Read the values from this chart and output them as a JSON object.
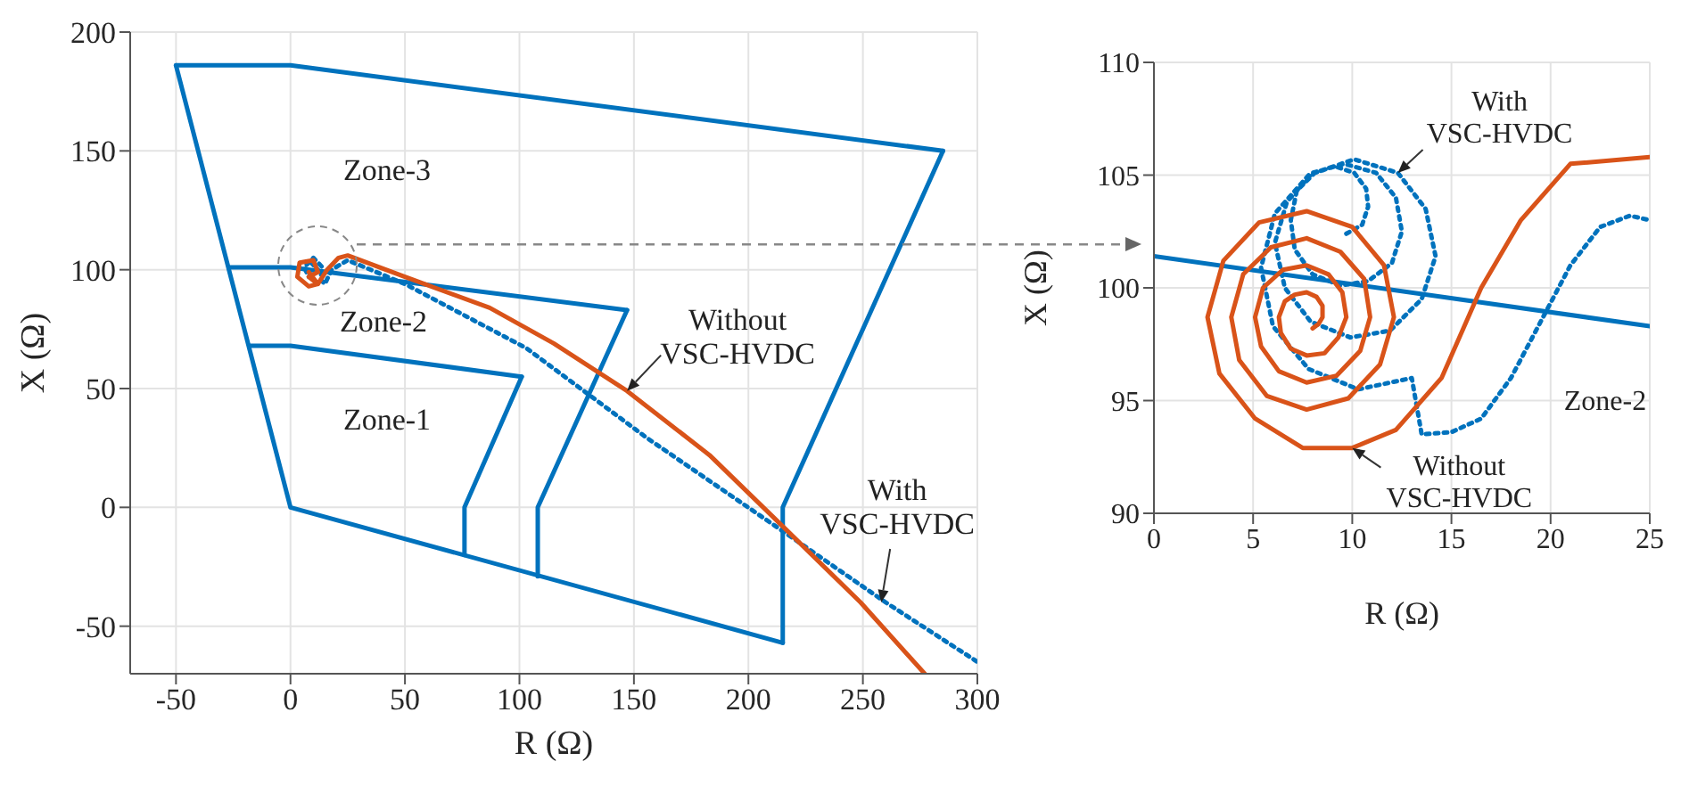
{
  "chart_data": [
    {
      "type": "line",
      "xlabel": "R (Ω)",
      "ylabel": "X (Ω)",
      "xlim": [
        -70,
        300
      ],
      "ylim": [
        -70,
        200
      ],
      "xticks": [
        -50,
        0,
        50,
        100,
        150,
        200,
        250,
        300
      ],
      "yticks": [
        -50,
        0,
        50,
        100,
        150,
        200
      ],
      "grid": true,
      "series": [
        {
          "color": "#0072bd",
          "line_style": "dotted",
          "x": [
            9,
            12,
            8,
            6,
            10,
            14,
            13,
            15,
            18,
            25,
            50,
            103,
            156,
            215,
            260,
            300
          ],
          "values": [
            103,
            100,
            97,
            101,
            105,
            101,
            96,
            94,
            100,
            104,
            94,
            67,
            29,
            -10,
            -40,
            -65
          ]
        },
        {
          "color": "#0072bd",
          "x": [
            -50,
            0,
            285
          ],
          "values": [
            186,
            186,
            150
          ]
        },
        {
          "color": "#0072bd",
          "x": [
            215,
            215,
            285
          ],
          "values": [
            -57,
            0,
            150
          ]
        },
        {
          "color": "#0072bd",
          "x": [
            -50,
            0,
            215
          ],
          "values": [
            186,
            0,
            -57
          ]
        },
        {
          "color": "#0072bd",
          "x": [
            -27,
            0,
            147
          ],
          "values": [
            101,
            101,
            83
          ]
        },
        {
          "color": "#0072bd",
          "x": [
            108,
            108,
            147
          ],
          "values": [
            -29,
            0,
            83
          ]
        },
        {
          "color": "#0072bd",
          "x": [
            -18,
            0,
            101
          ],
          "values": [
            68,
            68,
            55
          ]
        },
        {
          "color": "#0072bd",
          "x": [
            76,
            76,
            101
          ],
          "values": [
            -20,
            0,
            55
          ]
        },
        {
          "color": "#d95319",
          "x": [
            8,
            12,
            8,
            3,
            4,
            10,
            12,
            8,
            12,
            16,
            21,
            25,
            50,
            87,
            115,
            147,
            183,
            215,
            249,
            277
          ],
          "values": [
            99,
            94,
            93,
            97,
            103,
            104,
            99,
            97,
            94,
            100,
            105,
            106,
            97,
            84,
            69,
            49,
            22,
            -8,
            -40,
            -70
          ]
        }
      ],
      "annotations": [
        "Zone-3",
        "Zone-2",
        "Zone-1",
        {
          "text": "Without VSC-HVDC",
          "x": 147,
          "y": 49
        },
        {
          "text": "With VSC-HVDC",
          "x": 258,
          "y": -40
        }
      ]
    },
    {
      "type": "line",
      "xlabel": "R (Ω)",
      "ylabel": "X (Ω)",
      "xlim": [
        0,
        25
      ],
      "ylim": [
        90,
        110
      ],
      "xticks": [
        0,
        5,
        10,
        15,
        20,
        25
      ],
      "yticks": [
        90,
        95,
        100,
        105,
        110
      ],
      "grid": true,
      "series": [
        {
          "color": "#0072bd",
          "x": [
            0,
            25
          ],
          "values": [
            101.4,
            98.3
          ]
        },
        {
          "color": "#0072bd",
          "line_style": "dotted",
          "x": [
            9.7,
            10.5,
            10.8,
            10.7,
            10.1,
            9.1,
            8.1,
            7.2,
            6.9,
            7.1,
            8.0,
            9.4,
            10.8,
            12.0,
            12.5,
            12.2,
            11.2,
            9.6,
            8.0,
            6.7,
            6.1,
            6.6,
            7.9,
            9.9,
            11.9,
            13.5,
            14.2,
            13.7,
            12.3,
            10.1,
            7.8,
            6.1,
            5.4,
            6.0,
            7.8,
            10.3,
            13.0,
            13.5,
            15.0,
            16.5,
            18.0,
            19.5,
            21.0,
            22.5,
            24.0,
            25.0
          ],
          "values": [
            102.4,
            102.8,
            103.6,
            104.4,
            105.1,
            105.4,
            105.1,
            104.3,
            103.0,
            101.7,
            100.6,
            100.1,
            100.3,
            101.1,
            102.5,
            104.0,
            105.1,
            105.5,
            105.1,
            103.8,
            102.0,
            100.0,
            98.5,
            97.8,
            98.1,
            99.5,
            101.4,
            103.5,
            105.1,
            105.7,
            105.0,
            103.3,
            100.9,
            98.3,
            96.4,
            95.5,
            96.0,
            93.5,
            93.6,
            94.2,
            96.0,
            98.5,
            101.0,
            102.7,
            103.2,
            103.0
          ]
        },
        {
          "color": "#d95319",
          "x": [
            8.0,
            8.3,
            8.5,
            8.5,
            8.2,
            7.7,
            7.1,
            6.6,
            6.3,
            6.4,
            6.9,
            7.7,
            8.6,
            9.3,
            9.7,
            9.5,
            8.8,
            7.7,
            6.5,
            5.5,
            5.1,
            5.4,
            6.3,
            7.7,
            9.2,
            10.4,
            10.9,
            10.6,
            9.4,
            7.7,
            5.9,
            4.5,
            3.9,
            4.3,
            5.7,
            7.7,
            9.8,
            11.4,
            12.1,
            11.6,
            10.0,
            7.7,
            5.3,
            3.5,
            2.7,
            3.3,
            5.1,
            7.5,
            10.0,
            12.2,
            14.5,
            16.5,
            18.5,
            21.0,
            25.0
          ],
          "values": [
            98.2,
            98.4,
            98.7,
            99.2,
            99.6,
            99.8,
            99.7,
            99.4,
            98.7,
            98.0,
            97.3,
            97.0,
            97.1,
            97.8,
            98.7,
            99.8,
            100.6,
            101.0,
            100.8,
            100.0,
            98.7,
            97.4,
            96.3,
            95.8,
            96.1,
            97.2,
            98.7,
            100.4,
            101.6,
            102.2,
            101.8,
            100.6,
            98.7,
            96.8,
            95.2,
            94.6,
            95.1,
            96.6,
            98.7,
            101.0,
            102.7,
            103.4,
            102.9,
            101.2,
            98.7,
            96.2,
            94.2,
            92.9,
            92.9,
            93.7,
            96.0,
            100.0,
            103.0,
            105.5,
            105.8
          ]
        }
      ],
      "annotations": [
        {
          "text": "With VSC-HVDC",
          "x": 12.3,
          "y": 105.1
        },
        {
          "text": "Without VSC-HVDC",
          "x": 10.0,
          "y": 92.9
        },
        "Zone-2"
      ]
    }
  ]
}
